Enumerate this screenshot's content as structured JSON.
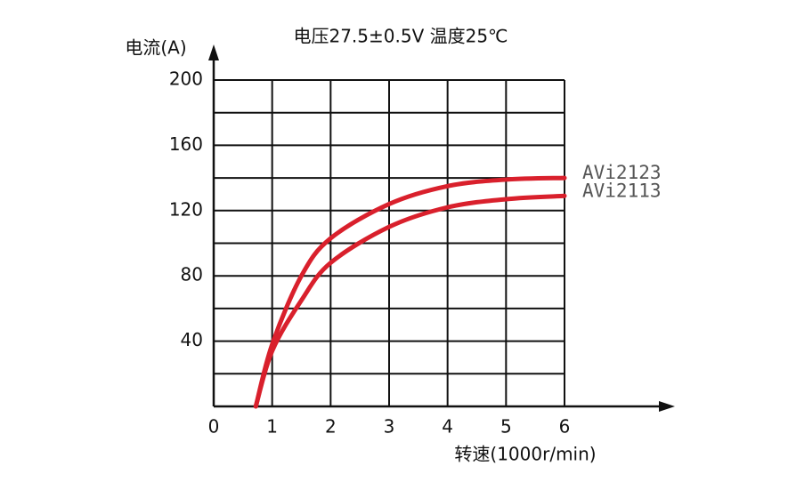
{
  "chart_data": {
    "type": "line",
    "title": "电压27.5±0.5V 温度25℃",
    "y_label": "电流(A)",
    "x_label": "转速(1000r/min)",
    "xlim": [
      0,
      6
    ],
    "xticks": [
      0,
      1,
      2,
      3,
      4,
      5,
      6
    ],
    "ylim": [
      0,
      200
    ],
    "yticks": [
      40,
      80,
      120,
      160,
      200
    ],
    "ygrid": [
      20,
      40,
      60,
      80,
      100,
      120,
      140,
      160,
      180,
      200
    ],
    "grid": true,
    "x": [
      0.72,
      1,
      1.5,
      2,
      3,
      4,
      5,
      6
    ],
    "series": [
      {
        "name": "AVi2123",
        "color": "#d9202c",
        "values": [
          0,
          38,
          80,
          103,
          124,
          135,
          139,
          140
        ]
      },
      {
        "name": "AVi2113",
        "color": "#d9202c",
        "values": [
          0,
          34,
          65,
          88,
          110,
          122,
          127,
          129
        ]
      }
    ]
  }
}
